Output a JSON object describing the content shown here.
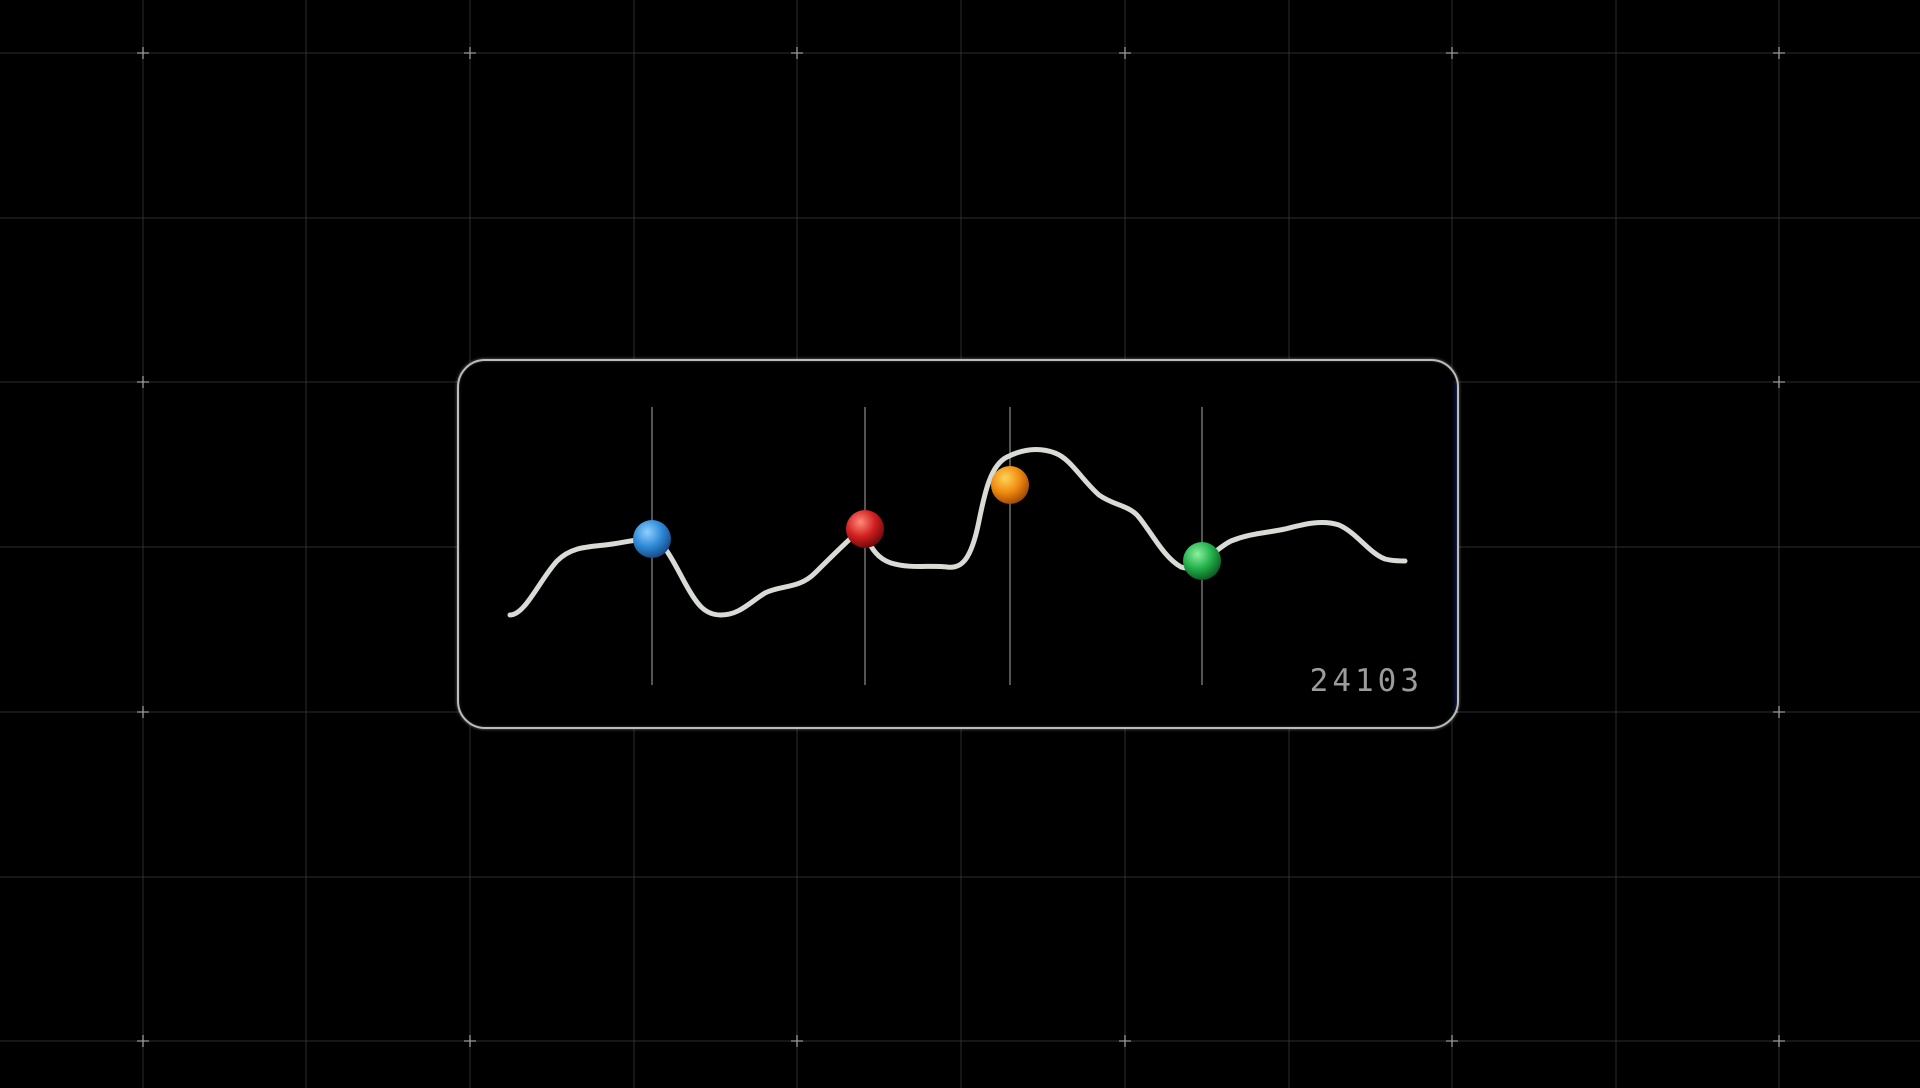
{
  "counter": {
    "value": "24103"
  },
  "colors": {
    "background": "#000000",
    "grid": "#3a3d3a",
    "card_border": "#b9bdb9",
    "wave": "#d8dbd6",
    "marker_lines": "#8a8d8a",
    "counter_text": "#9a9d9a"
  },
  "markers": [
    {
      "name": "blue-node",
      "color": "#2f8ad8",
      "highlight": "#8fd0ff",
      "shade": "#154a86"
    },
    {
      "name": "red-node",
      "color": "#d11f1f",
      "highlight": "#ff8a7a",
      "shade": "#6e0a0a"
    },
    {
      "name": "orange-node",
      "color": "#f08a10",
      "highlight": "#ffd45a",
      "shade": "#a04a05"
    },
    {
      "name": "green-node",
      "color": "#22b04a",
      "highlight": "#8cf0a0",
      "shade": "#0c5c22"
    }
  ]
}
